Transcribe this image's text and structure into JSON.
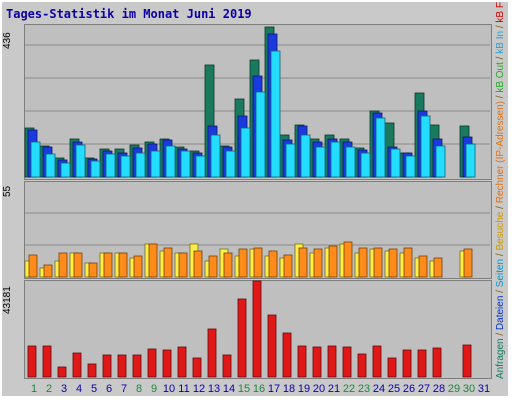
{
  "title": "Tages-Statistik im Monat Juni 2019",
  "legend": [
    {
      "text": "Anfragen",
      "color": "#117a5c"
    },
    {
      "text": " / ",
      "color": "#7a5a00"
    },
    {
      "text": "Dateien",
      "color": "#0033cc"
    },
    {
      "text": " / ",
      "color": "#7a5a00"
    },
    {
      "text": "Seiten",
      "color": "#0099cc"
    },
    {
      "text": " / ",
      "color": "#7a5a00"
    },
    {
      "text": "Besuche",
      "color": "#cc9900"
    },
    {
      "text": " / ",
      "color": "#7a5a00"
    },
    {
      "text": "Rechner (IP-Adressen)",
      "color": "#e07010"
    },
    {
      "text": " / ",
      "color": "#7a5a00"
    },
    {
      "text": "kB Out",
      "color": "#22aa22"
    },
    {
      "text": " / ",
      "color": "#7a5a00"
    },
    {
      "text": "kB In",
      "color": "#3399cc"
    },
    {
      "text": " / ",
      "color": "#7a5a00"
    },
    {
      "text": "kB F",
      "color": "#cc0000"
    }
  ],
  "chart_data": {
    "type": "bar",
    "title": "Tages-Statistik im Monat Juni 2019",
    "categories": [
      "1",
      "2",
      "3",
      "4",
      "5",
      "6",
      "7",
      "8",
      "9",
      "10",
      "11",
      "12",
      "13",
      "14",
      "15",
      "16",
      "17",
      "18",
      "19",
      "20",
      "21",
      "22",
      "23",
      "24",
      "25",
      "26",
      "27",
      "28",
      "29",
      "30",
      "31"
    ],
    "weekend_days": [
      "1",
      "2",
      "8",
      "9",
      "15",
      "16",
      "22",
      "23",
      "29",
      "30"
    ],
    "colors": {
      "anfragen": "#1a7a5e",
      "dateien": "#1a3ae0",
      "seiten": "#22ddff",
      "besuche": "#ffee44",
      "rechner": "#ff8c1a",
      "kbf": "#e01818",
      "weekday_label": "#0b00a8",
      "weekend_label": "#1a8a3a"
    },
    "panels": [
      {
        "id": "top",
        "ymax_label": "436",
        "ylim": [
          0,
          436
        ],
        "series": [
          {
            "name": "Anfragen",
            "key": "anfragen",
            "values": [
              140,
              90,
              55,
              110,
              55,
              80,
              80,
              92,
              100,
              110,
              85,
              75,
              320,
              90,
              225,
              335,
              430,
              120,
              150,
              110,
              120,
              110,
              82,
              190,
              155,
              70,
              240,
              150,
              0,
              145,
              0
            ]
          },
          {
            "name": "Dateien",
            "key": "dateien",
            "values": [
              135,
              85,
              50,
              100,
              52,
              75,
              70,
              84,
              95,
              105,
              80,
              70,
              145,
              85,
              175,
              290,
              410,
              105,
              145,
              100,
              110,
              100,
              78,
              185,
              85,
              68,
              190,
              110,
              0,
              115,
              0
            ]
          },
          {
            "name": "Seiten",
            "key": "seiten",
            "values": [
              100,
              65,
              40,
              92,
              45,
              65,
              60,
              70,
              75,
              90,
              75,
              60,
              120,
              75,
              140,
              245,
              360,
              95,
              120,
              85,
              100,
              85,
              70,
              170,
              80,
              60,
              175,
              90,
              0,
              95,
              0
            ]
          }
        ]
      },
      {
        "id": "middle",
        "ymax_label": "55",
        "ylim": [
          0,
          55
        ],
        "series": [
          {
            "name": "Besuche",
            "key": "besuche",
            "values": [
              9,
              5,
              9,
              14,
              8,
              14,
              14,
              11,
              19,
              15,
              14,
              19,
              9,
              16,
              12,
              16,
              12,
              11,
              19,
              14,
              17,
              19,
              14,
              16,
              15,
              14,
              11,
              9,
              0,
              15,
              0
            ]
          },
          {
            "name": "Rechner (IP-Adressen)",
            "key": "rechner",
            "values": [
              13,
              7,
              14,
              14,
              8,
              14,
              14,
              12,
              19,
              17,
              14,
              15,
              12,
              14,
              16,
              17,
              15,
              13,
              17,
              16,
              18,
              20,
              17,
              17,
              16,
              17,
              12,
              11,
              0,
              16,
              0
            ]
          }
        ]
      },
      {
        "id": "bottom",
        "ymax_label": "43181",
        "ylim": [
          0,
          43181
        ],
        "series": [
          {
            "name": "kB F",
            "key": "kbf",
            "values": [
              14000,
              14000,
              4700,
              11000,
              6000,
              9800,
              9800,
              10000,
              12800,
              12000,
              13500,
              8500,
              21500,
              10000,
              35000,
              43000,
              28000,
              20000,
              14000,
              13300,
              14000,
              13400,
              10500,
              14000,
              8500,
              12000,
              12000,
              13000,
              0,
              14500,
              0
            ]
          }
        ]
      }
    ]
  }
}
